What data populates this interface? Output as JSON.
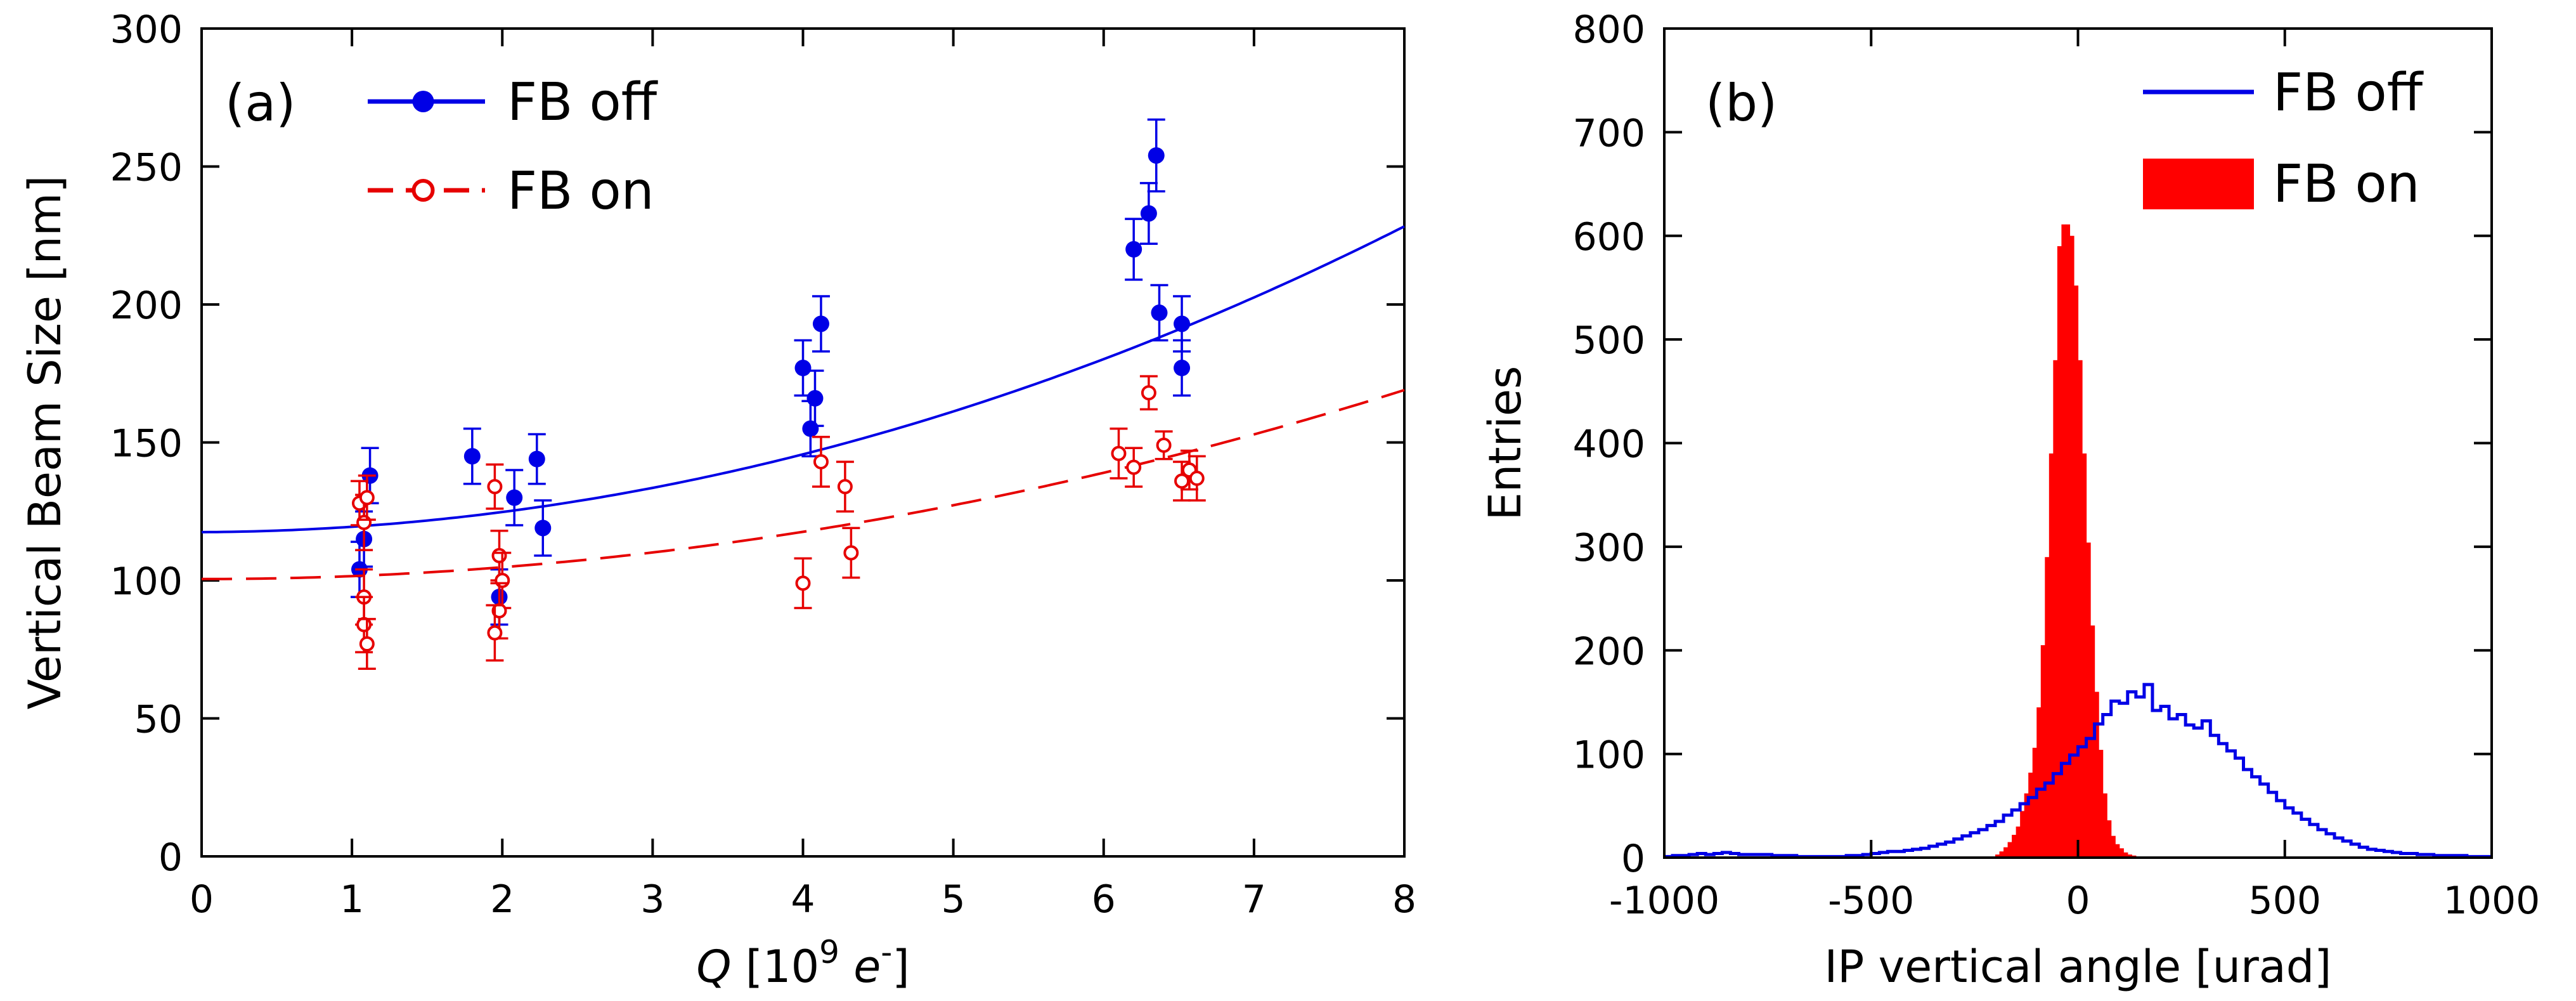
{
  "chart_data": [
    {
      "type": "scatter",
      "panel_label": "(a)",
      "xlabel": {
        "var": "Q",
        "unit_open": "[10",
        "exp": "9",
        "particle": "e",
        "particle_sup": "-",
        "unit_close": "]"
      },
      "ylabel": "Vertical Beam Size [nm]",
      "xlim": [
        0,
        8
      ],
      "ylim": [
        0,
        300
      ],
      "xticks": [
        0,
        1,
        2,
        3,
        4,
        5,
        6,
        7,
        8
      ],
      "yticks": [
        0,
        50,
        100,
        150,
        200,
        250,
        300
      ],
      "legend_position": "top-left",
      "series": [
        {
          "name": "FB off",
          "color": "#0000e6",
          "marker": "filled-circle",
          "points": [
            {
              "x": 1.05,
              "y": 104,
              "err": 10
            },
            {
              "x": 1.08,
              "y": 115,
              "err": 10
            },
            {
              "x": 1.12,
              "y": 138,
              "err": 10
            },
            {
              "x": 1.8,
              "y": 145,
              "err": 10
            },
            {
              "x": 1.98,
              "y": 94,
              "err": 10
            },
            {
              "x": 2.08,
              "y": 130,
              "err": 10
            },
            {
              "x": 2.23,
              "y": 144,
              "err": 9
            },
            {
              "x": 2.27,
              "y": 119,
              "err": 10
            },
            {
              "x": 4.0,
              "y": 177,
              "err": 10
            },
            {
              "x": 4.05,
              "y": 155,
              "err": 10
            },
            {
              "x": 4.08,
              "y": 166,
              "err": 10
            },
            {
              "x": 4.12,
              "y": 193,
              "err": 10
            },
            {
              "x": 6.2,
              "y": 220,
              "err": 11
            },
            {
              "x": 6.3,
              "y": 233,
              "err": 11
            },
            {
              "x": 6.35,
              "y": 254,
              "err": 13
            },
            {
              "x": 6.37,
              "y": 197,
              "err": 10
            },
            {
              "x": 6.52,
              "y": 193,
              "err": 10
            },
            {
              "x": 6.52,
              "y": 177,
              "err": 10
            }
          ],
          "fit": {
            "style": "solid",
            "y0": 117.5,
            "slope": 0.25,
            "curvature": 1.7
          }
        },
        {
          "name": "FB on",
          "color": "#e60000",
          "marker": "open-circle",
          "points": [
            {
              "x": 1.05,
              "y": 128,
              "err": 8
            },
            {
              "x": 1.08,
              "y": 121,
              "err": 10
            },
            {
              "x": 1.1,
              "y": 130,
              "err": 8
            },
            {
              "x": 1.08,
              "y": 94,
              "err": 10
            },
            {
              "x": 1.08,
              "y": 84,
              "err": 10
            },
            {
              "x": 1.1,
              "y": 77,
              "err": 9
            },
            {
              "x": 1.95,
              "y": 134,
              "err": 8
            },
            {
              "x": 1.98,
              "y": 109,
              "err": 9
            },
            {
              "x": 2.0,
              "y": 100,
              "err": 10
            },
            {
              "x": 1.98,
              "y": 89,
              "err": 10
            },
            {
              "x": 1.95,
              "y": 81,
              "err": 10
            },
            {
              "x": 4.0,
              "y": 99,
              "err": 9
            },
            {
              "x": 4.12,
              "y": 143,
              "err": 9
            },
            {
              "x": 4.28,
              "y": 134,
              "err": 9
            },
            {
              "x": 4.32,
              "y": 110,
              "err": 9
            },
            {
              "x": 6.1,
              "y": 146,
              "err": 9
            },
            {
              "x": 6.2,
              "y": 141,
              "err": 7
            },
            {
              "x": 6.3,
              "y": 168,
              "err": 6
            },
            {
              "x": 6.4,
              "y": 149,
              "err": 5
            },
            {
              "x": 6.52,
              "y": 136,
              "err": 7
            },
            {
              "x": 6.57,
              "y": 140,
              "err": 7
            },
            {
              "x": 6.62,
              "y": 137,
              "err": 8
            }
          ],
          "fit": {
            "style": "dashed",
            "y0": 100.5,
            "slope": 0.0,
            "curvature": 1.07
          }
        }
      ]
    },
    {
      "type": "histogram",
      "panel_label": "(b)",
      "xlabel": "IP vertical angle [urad]",
      "ylabel": "Entries",
      "xlim": [
        -1000,
        1000
      ],
      "ylim": [
        0,
        800
      ],
      "xticks": [
        -1000,
        -500,
        0,
        500,
        1000
      ],
      "yticks": [
        0,
        100,
        200,
        300,
        400,
        500,
        600,
        700,
        800
      ],
      "legend_position": "top-right",
      "series": [
        {
          "name": "FB off",
          "color": "#0000e6",
          "style": "step-line",
          "bin_width": 20,
          "x_start": -1000,
          "values": [
            1,
            2,
            2,
            3,
            4,
            3,
            4,
            5,
            4,
            3,
            3,
            3,
            3,
            2,
            2,
            2,
            1,
            1,
            1,
            1,
            1,
            1,
            2,
            2,
            3,
            4,
            5,
            6,
            6,
            7,
            8,
            9,
            11,
            13,
            15,
            18,
            21,
            24,
            27,
            31,
            35,
            41,
            46,
            52,
            58,
            66,
            72,
            81,
            91,
            99,
            107,
            115,
            129,
            138,
            151,
            149,
            160,
            155,
            167,
            142,
            146,
            134,
            138,
            128,
            125,
            132,
            118,
            110,
            103,
            96,
            85,
            78,
            71,
            63,
            55,
            48,
            43,
            37,
            32,
            27,
            23,
            19,
            16,
            13,
            10,
            8,
            7,
            6,
            5,
            4,
            4,
            3,
            3,
            2,
            2,
            2,
            2,
            1,
            1,
            1
          ]
        },
        {
          "name": "FB on",
          "color": "#ff0000",
          "style": "filled-bars",
          "bin_width": 10,
          "x_start": -200,
          "values": [
            3,
            6,
            10,
            15,
            22,
            30,
            45,
            62,
            82,
            106,
            145,
            205,
            290,
            390,
            480,
            590,
            611,
            611,
            600,
            552,
            480,
            390,
            304,
            224,
            160,
            104,
            62,
            36,
            21,
            13,
            9,
            5,
            3,
            2,
            1,
            0,
            0,
            0,
            0,
            0
          ]
        }
      ]
    }
  ]
}
